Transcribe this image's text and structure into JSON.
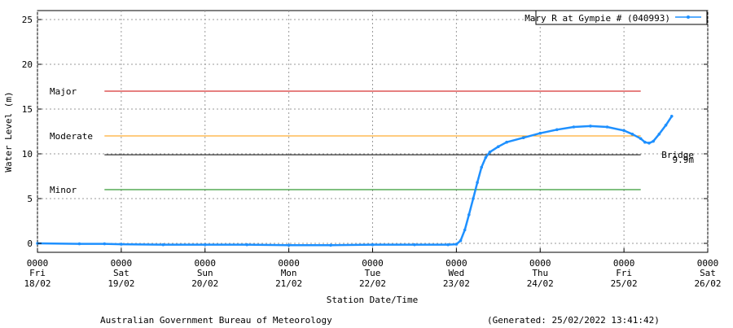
{
  "chart_data": {
    "type": "line",
    "title": "",
    "xlabel": "Station Date/Time",
    "ylabel": "Water Level (m)",
    "ylim": [
      -1,
      26
    ],
    "xlim": [
      0,
      8
    ],
    "grid": true,
    "legend_position": "top-right",
    "x_ticks": [
      {
        "time": "0000",
        "day": "Fri",
        "date": "18/02"
      },
      {
        "time": "0000",
        "day": "Sat",
        "date": "19/02"
      },
      {
        "time": "0000",
        "day": "Sun",
        "date": "20/02"
      },
      {
        "time": "0000",
        "day": "Mon",
        "date": "21/02"
      },
      {
        "time": "0000",
        "day": "Tue",
        "date": "22/02"
      },
      {
        "time": "0000",
        "day": "Wed",
        "date": "23/02"
      },
      {
        "time": "0000",
        "day": "Thu",
        "date": "24/02"
      },
      {
        "time": "0000",
        "day": "Fri",
        "date": "25/02"
      },
      {
        "time": "0000",
        "day": "Sat",
        "date": "26/02"
      }
    ],
    "y_ticks": [
      "0",
      "5",
      "10",
      "15",
      "20",
      "25"
    ],
    "thresholds": [
      {
        "label": "Major",
        "value": 17,
        "color": "#cc0000"
      },
      {
        "label": "Moderate",
        "value": 12,
        "color": "#ff9900"
      },
      {
        "label": "Minor",
        "value": 6,
        "color": "#008000"
      }
    ],
    "bridge": {
      "label": "Bridge",
      "value_label": "9.9m",
      "value": 9.9,
      "color": "#000000"
    },
    "threshold_span_days": [
      0.8,
      7.2
    ],
    "series": [
      {
        "name": "Mary R at Gympie # (040993)",
        "color": "#1e90ff",
        "points": [
          [
            0.0,
            0.0
          ],
          [
            0.5,
            -0.05
          ],
          [
            0.8,
            -0.05
          ],
          [
            1.0,
            -0.1
          ],
          [
            1.5,
            -0.15
          ],
          [
            2.0,
            -0.15
          ],
          [
            2.5,
            -0.15
          ],
          [
            3.0,
            -0.2
          ],
          [
            3.5,
            -0.2
          ],
          [
            4.0,
            -0.15
          ],
          [
            4.5,
            -0.15
          ],
          [
            4.9,
            -0.15
          ],
          [
            5.0,
            -0.1
          ],
          [
            5.05,
            0.3
          ],
          [
            5.1,
            1.5
          ],
          [
            5.15,
            3.2
          ],
          [
            5.2,
            5.0
          ],
          [
            5.25,
            6.8
          ],
          [
            5.3,
            8.5
          ],
          [
            5.35,
            9.6
          ],
          [
            5.4,
            10.2
          ],
          [
            5.5,
            10.8
          ],
          [
            5.6,
            11.3
          ],
          [
            5.8,
            11.8
          ],
          [
            6.0,
            12.3
          ],
          [
            6.2,
            12.7
          ],
          [
            6.4,
            13.0
          ],
          [
            6.6,
            13.1
          ],
          [
            6.8,
            13.0
          ],
          [
            7.0,
            12.6
          ],
          [
            7.1,
            12.2
          ],
          [
            7.2,
            11.7
          ],
          [
            7.25,
            11.3
          ],
          [
            7.3,
            11.2
          ],
          [
            7.35,
            11.4
          ],
          [
            7.42,
            12.2
          ],
          [
            7.5,
            13.2
          ],
          [
            7.57,
            14.2
          ]
        ]
      }
    ]
  },
  "footer": {
    "left": "Australian Government Bureau of Meteorology",
    "right": "(Generated: 25/02/2022 13:41:42)"
  }
}
